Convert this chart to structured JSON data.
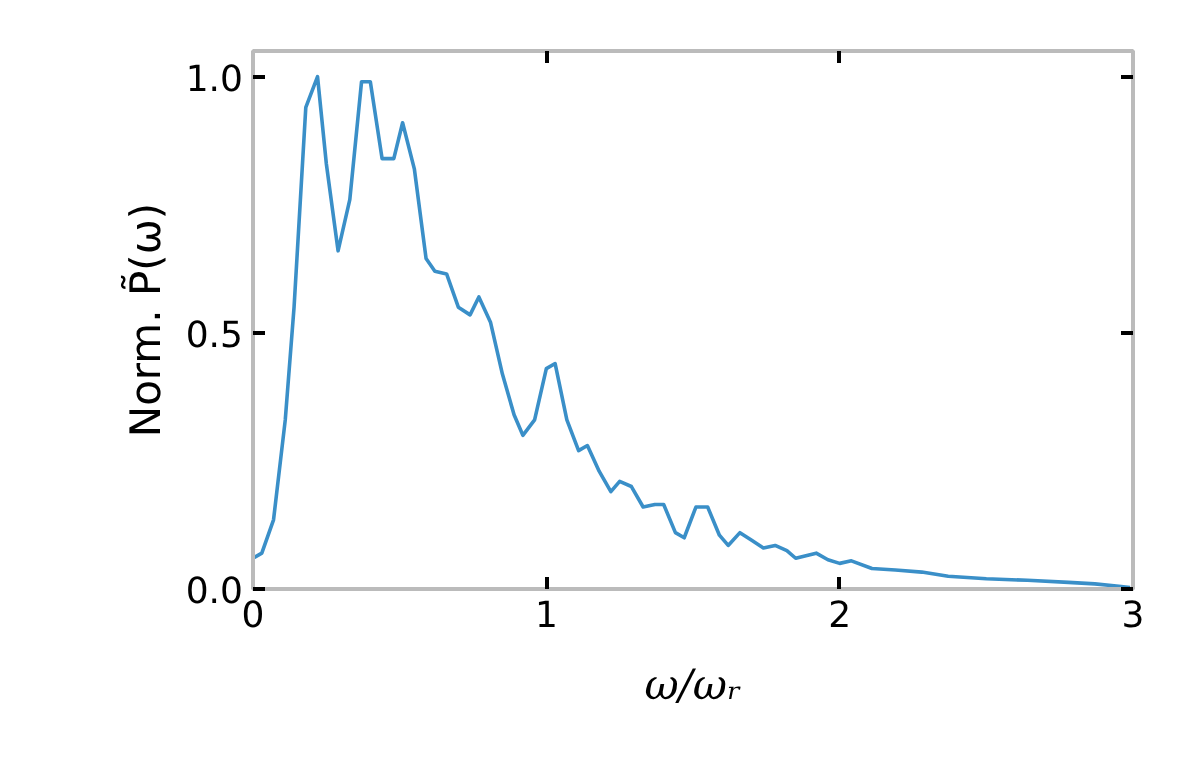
{
  "chart_data": {
    "type": "line",
    "xlabel": "ω/ωᵣ",
    "ylabel": "Norm. P̃(ω)",
    "xlim": [
      0,
      3
    ],
    "ylim": [
      0,
      1.05
    ],
    "xticks": [
      0,
      1,
      2,
      3
    ],
    "yticks": [
      {
        "value": 0,
        "label": "0.0"
      },
      {
        "value": 0.5,
        "label": "0.5"
      },
      {
        "value": 1,
        "label": "1.0"
      }
    ],
    "grid": false,
    "x": [
      0.0,
      0.03,
      0.07,
      0.11,
      0.14,
      0.18,
      0.22,
      0.25,
      0.29,
      0.33,
      0.37,
      0.4,
      0.44,
      0.48,
      0.51,
      0.55,
      0.59,
      0.62,
      0.66,
      0.7,
      0.74,
      0.77,
      0.81,
      0.85,
      0.89,
      0.92,
      0.96,
      1.0,
      1.03,
      1.07,
      1.11,
      1.14,
      1.18,
      1.22,
      1.25,
      1.29,
      1.33,
      1.37,
      1.4,
      1.44,
      1.47,
      1.51,
      1.55,
      1.59,
      1.62,
      1.66,
      1.7,
      1.74,
      1.78,
      1.82,
      1.85,
      1.92,
      1.96,
      2.0,
      2.04,
      2.11,
      2.19,
      2.28,
      2.37,
      2.5,
      2.64,
      2.78,
      2.87,
      2.96,
      2.99
    ],
    "series": [
      {
        "color": "#3a8fc8",
        "values": [
          0.06,
          0.07,
          0.135,
          0.33,
          0.55,
          0.94,
          1.0,
          0.83,
          0.66,
          0.76,
          0.99,
          0.99,
          0.84,
          0.84,
          0.91,
          0.82,
          0.645,
          0.62,
          0.615,
          0.55,
          0.535,
          0.57,
          0.52,
          0.42,
          0.34,
          0.3,
          0.33,
          0.43,
          0.44,
          0.33,
          0.27,
          0.28,
          0.23,
          0.19,
          0.21,
          0.2,
          0.16,
          0.165,
          0.165,
          0.11,
          0.1,
          0.16,
          0.16,
          0.105,
          0.085,
          0.11,
          0.095,
          0.08,
          0.085,
          0.075,
          0.06,
          0.07,
          0.057,
          0.05,
          0.055,
          0.04,
          0.037,
          0.033,
          0.025,
          0.02,
          0.017,
          0.013,
          0.01,
          0.005,
          0.003
        ]
      }
    ]
  }
}
